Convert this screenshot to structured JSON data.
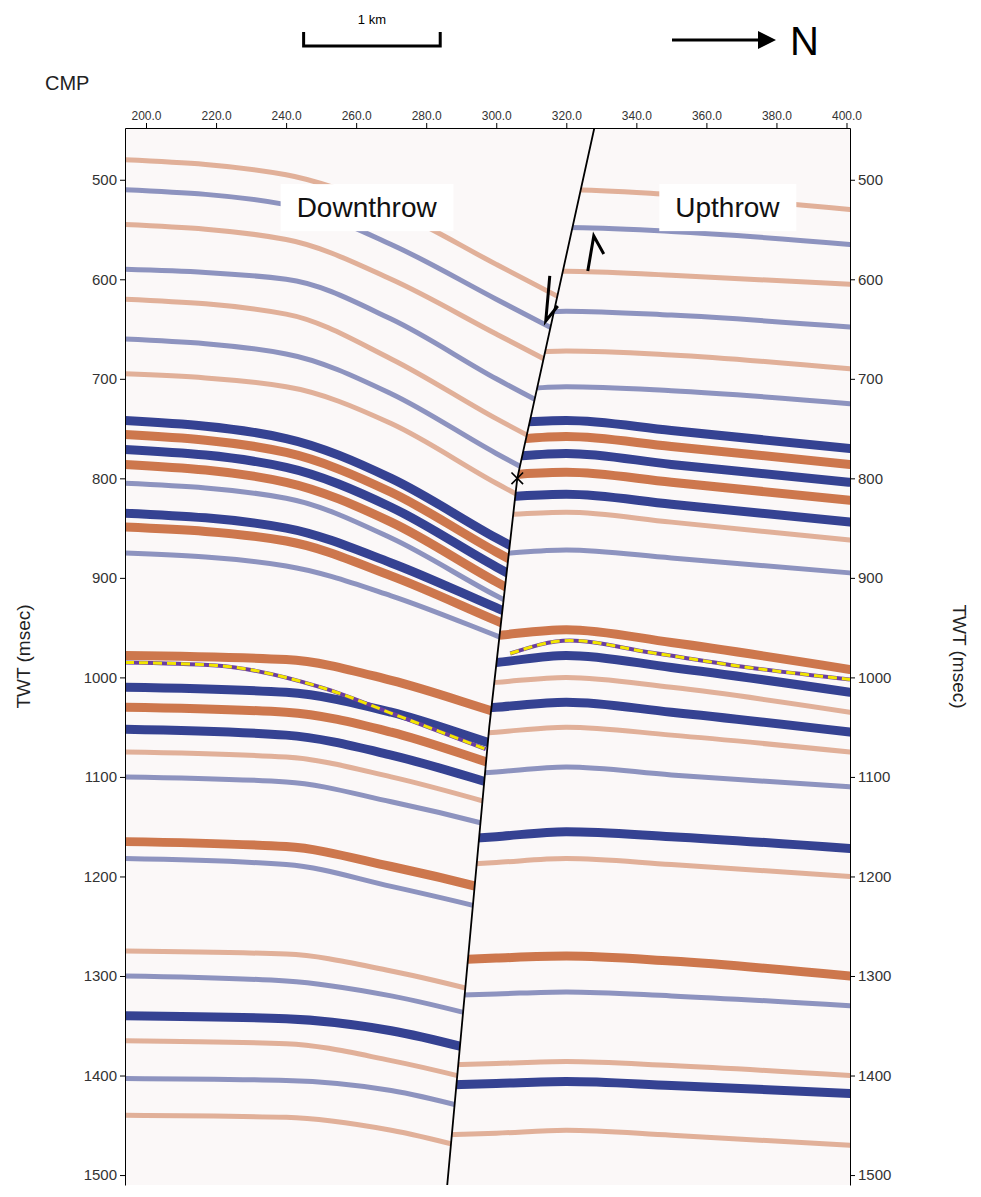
{
  "chart_data": {
    "type": "seismic_section",
    "x_label": "CMP",
    "y_label": "TWT (msec)",
    "y2_label": "TWT (msec)",
    "xlim": [
      194,
      401
    ],
    "xticks": [
      {
        "value": 200,
        "label": "200.0"
      },
      {
        "value": 220,
        "label": "220.0"
      },
      {
        "value": 240,
        "label": "240.0"
      },
      {
        "value": 260,
        "label": "260.0"
      },
      {
        "value": 280,
        "label": "280.0"
      },
      {
        "value": 300,
        "label": "300.0"
      },
      {
        "value": 320,
        "label": "320.0"
      },
      {
        "value": 340,
        "label": "340.0"
      },
      {
        "value": 360,
        "label": "360.0"
      },
      {
        "value": 380,
        "label": "380.0"
      },
      {
        "value": 400,
        "label": "400.0"
      }
    ],
    "ylim": [
      448,
      1510
    ],
    "yticks": [
      500,
      600,
      700,
      800,
      900,
      1000,
      1100,
      1200,
      1300,
      1400,
      1500
    ],
    "y2lim": [
      448,
      1510
    ],
    "y2ticks": [
      500,
      600,
      700,
      800,
      900,
      1000,
      1100,
      1200,
      1300,
      1400,
      1500
    ],
    "annotations": [
      {
        "text": "Downthrow",
        "x": 263,
        "y": 528
      },
      {
        "text": "Upthrow",
        "x": 366,
        "y": 528
      }
    ],
    "scale_bar": {
      "label": "1 km",
      "x": [
        245,
        284
      ]
    },
    "north_arrow": {
      "label": "N"
    },
    "fault": {
      "color": "#000000",
      "x": [
        328,
        306,
        298,
        286
      ],
      "y": [
        448,
        800,
        1050,
        1510
      ]
    },
    "fault_marker": {
      "x": 306,
      "y": 800,
      "marker": "x"
    },
    "horizons": [
      {
        "color": "#f2e600",
        "line_style": "dashed",
        "x": [
          194,
          220,
          250,
          273,
          297
        ],
        "y": [
          985,
          988,
          1010,
          1040,
          1072
        ]
      },
      {
        "color": "#f2e600",
        "line_style": "dashed",
        "x": [
          304,
          321,
          344,
          372,
          401
        ],
        "y": [
          976,
          963,
          975,
          990,
          1002
        ]
      }
    ],
    "downthrow_reflectors": [
      {
        "color": "#c8683a",
        "line_style": "weak",
        "x": [
          194,
          240,
          270,
          300,
          330
        ],
        "y": [
          480,
          495,
          530,
          585,
          640
        ]
      },
      {
        "color": "#1f2d86",
        "line_style": "weak",
        "x": [
          194,
          240,
          270,
          300,
          330
        ],
        "y": [
          510,
          525,
          565,
          620,
          675
        ]
      },
      {
        "color": "#c8683a",
        "line_style": "weak",
        "x": [
          194,
          240,
          270,
          300,
          330
        ],
        "y": [
          545,
          560,
          600,
          655,
          710
        ]
      },
      {
        "color": "#1f2d86",
        "line_style": "weak",
        "x": [
          194,
          240,
          270,
          300,
          330
        ],
        "y": [
          590,
          600,
          640,
          700,
          755
        ]
      },
      {
        "color": "#c8683a",
        "line_style": "weak",
        "x": [
          194,
          240,
          270,
          300,
          330
        ],
        "y": [
          620,
          635,
          680,
          740,
          795
        ]
      },
      {
        "color": "#1f2d86",
        "line_style": "weak",
        "x": [
          194,
          240,
          270,
          300,
          330
        ],
        "y": [
          660,
          675,
          715,
          775,
          830
        ]
      },
      {
        "color": "#c8683a",
        "line_style": "weak",
        "x": [
          194,
          240,
          270,
          300,
          330
        ],
        "y": [
          695,
          708,
          745,
          805,
          860
        ]
      },
      {
        "color": "#1f2d86",
        "line_style": "strong",
        "x": [
          194,
          240,
          270,
          300,
          330
        ],
        "y": [
          742,
          760,
          800,
          860,
          915
        ]
      },
      {
        "color": "#c8683a",
        "line_style": "strong",
        "x": [
          194,
          240,
          270,
          300,
          330
        ],
        "y": [
          756,
          774,
          814,
          874,
          929
        ]
      },
      {
        "color": "#1f2d86",
        "line_style": "strong",
        "x": [
          194,
          240,
          270,
          300,
          330
        ],
        "y": [
          771,
          789,
          829,
          889,
          944
        ]
      },
      {
        "color": "#c8683a",
        "line_style": "strong",
        "x": [
          194,
          240,
          270,
          300,
          330
        ],
        "y": [
          786,
          804,
          844,
          904,
          959
        ]
      },
      {
        "color": "#1f2d86",
        "line_style": "weak",
        "x": [
          194,
          240,
          270,
          300,
          330
        ],
        "y": [
          805,
          820,
          860,
          918,
          970
        ]
      },
      {
        "color": "#1f2d86",
        "line_style": "strong",
        "x": [
          194,
          240,
          270,
          300,
          330
        ],
        "y": [
          835,
          850,
          885,
          930,
          975
        ]
      },
      {
        "color": "#c8683a",
        "line_style": "strong",
        "x": [
          194,
          240,
          270,
          300,
          330
        ],
        "y": [
          849,
          863,
          898,
          943,
          988
        ]
      },
      {
        "color": "#1f2d86",
        "line_style": "weak",
        "x": [
          194,
          240,
          270,
          300,
          330
        ],
        "y": [
          875,
          888,
          918,
          958,
          1000
        ]
      },
      {
        "color": "#c8683a",
        "line_style": "strong",
        "x": [
          194,
          240,
          270,
          300,
          330
        ],
        "y": [
          978,
          982,
          1003,
          1035,
          1067
        ]
      },
      {
        "color": "#1f2d86",
        "line_style": "strong",
        "x": [
          194,
          240,
          270,
          300,
          330
        ],
        "y": [
          1010,
          1015,
          1035,
          1068,
          1100
        ]
      },
      {
        "color": "#c8683a",
        "line_style": "strong",
        "x": [
          194,
          240,
          270,
          300,
          330
        ],
        "y": [
          1030,
          1035,
          1055,
          1088,
          1120
        ]
      },
      {
        "color": "#1f2d86",
        "line_style": "strong",
        "x": [
          194,
          240,
          270,
          300,
          330
        ],
        "y": [
          1052,
          1058,
          1078,
          1108,
          1140
        ]
      },
      {
        "color": "#c8683a",
        "line_style": "weak",
        "x": [
          194,
          240,
          270,
          300,
          330
        ],
        "y": [
          1075,
          1080,
          1100,
          1128,
          1160
        ]
      },
      {
        "color": "#1f2d86",
        "line_style": "weak",
        "x": [
          194,
          240,
          270,
          300,
          330
        ],
        "y": [
          1100,
          1105,
          1125,
          1150,
          1180
        ]
      },
      {
        "color": "#c8683a",
        "line_style": "strong",
        "x": [
          194,
          240,
          270,
          300,
          330
        ],
        "y": [
          1165,
          1170,
          1190,
          1215,
          1245
        ]
      },
      {
        "color": "#1f2d86",
        "line_style": "weak",
        "x": [
          194,
          240,
          270,
          300,
          330
        ],
        "y": [
          1182,
          1188,
          1210,
          1235,
          1265
        ]
      },
      {
        "color": "#c8683a",
        "line_style": "weak",
        "x": [
          194,
          240,
          270,
          300,
          330
        ],
        "y": [
          1275,
          1278,
          1295,
          1320,
          1350
        ]
      },
      {
        "color": "#1f2d86",
        "line_style": "weak",
        "x": [
          194,
          240,
          270,
          300,
          330
        ],
        "y": [
          1300,
          1305,
          1320,
          1345,
          1375
        ]
      },
      {
        "color": "#1f2d86",
        "line_style": "strong",
        "x": [
          194,
          240,
          270,
          300,
          330
        ],
        "y": [
          1340,
          1343,
          1355,
          1380,
          1410
        ]
      },
      {
        "color": "#c8683a",
        "line_style": "weak",
        "x": [
          194,
          240,
          270,
          300,
          330
        ],
        "y": [
          1365,
          1368,
          1385,
          1410,
          1440
        ]
      },
      {
        "color": "#1f2d86",
        "line_style": "weak",
        "x": [
          194,
          240,
          270,
          300,
          330
        ],
        "y": [
          1403,
          1405,
          1415,
          1440,
          1470
        ]
      },
      {
        "color": "#c8683a",
        "line_style": "weak",
        "x": [
          194,
          240,
          270,
          300,
          330
        ],
        "y": [
          1440,
          1442,
          1455,
          1480,
          1505
        ]
      }
    ],
    "upthrow_reflectors": [
      {
        "color": "#c8683a",
        "line_style": "weak",
        "x": [
          280,
          300,
          320,
          350,
          401
        ],
        "y": [
          520,
          515,
          510,
          515,
          530
        ]
      },
      {
        "color": "#1f2d86",
        "line_style": "weak",
        "x": [
          280,
          300,
          320,
          350,
          401
        ],
        "y": [
          555,
          552,
          548,
          552,
          565
        ]
      },
      {
        "color": "#c8683a",
        "line_style": "weak",
        "x": [
          280,
          300,
          320,
          350,
          401
        ],
        "y": [
          600,
          596,
          592,
          596,
          605
        ]
      },
      {
        "color": "#1f2d86",
        "line_style": "weak",
        "x": [
          280,
          300,
          320,
          350,
          401
        ],
        "y": [
          640,
          636,
          632,
          636,
          648
        ]
      },
      {
        "color": "#c8683a",
        "line_style": "weak",
        "x": [
          280,
          300,
          320,
          350,
          401
        ],
        "y": [
          680,
          676,
          672,
          676,
          690
        ]
      },
      {
        "color": "#1f2d86",
        "line_style": "weak",
        "x": [
          280,
          300,
          320,
          350,
          401
        ],
        "y": [
          715,
          712,
          708,
          712,
          725
        ]
      },
      {
        "color": "#1f2d86",
        "line_style": "strong",
        "x": [
          280,
          300,
          320,
          350,
          401
        ],
        "y": [
          748,
          745,
          742,
          752,
          770
        ]
      },
      {
        "color": "#c8683a",
        "line_style": "strong",
        "x": [
          280,
          300,
          320,
          350,
          401
        ],
        "y": [
          765,
          762,
          758,
          768,
          786
        ]
      },
      {
        "color": "#1f2d86",
        "line_style": "strong",
        "x": [
          280,
          300,
          320,
          350,
          401
        ],
        "y": [
          782,
          779,
          775,
          786,
          804
        ]
      },
      {
        "color": "#c8683a",
        "line_style": "strong",
        "x": [
          280,
          300,
          320,
          350,
          401
        ],
        "y": [
          800,
          797,
          794,
          804,
          822
        ]
      },
      {
        "color": "#1f2d86",
        "line_style": "strong",
        "x": [
          280,
          300,
          320,
          350,
          401
        ],
        "y": [
          822,
          819,
          816,
          826,
          844
        ]
      },
      {
        "color": "#c8683a",
        "line_style": "weak",
        "x": [
          280,
          300,
          320,
          350,
          401
        ],
        "y": [
          840,
          837,
          834,
          844,
          862
        ]
      },
      {
        "color": "#1f2d86",
        "line_style": "weak",
        "x": [
          280,
          300,
          320,
          350,
          401
        ],
        "y": [
          880,
          876,
          872,
          880,
          895
        ]
      },
      {
        "color": "#c8683a",
        "line_style": "strong",
        "x": [
          280,
          300,
          320,
          350,
          401
        ],
        "y": [
          965,
          958,
          952,
          965,
          992
        ]
      },
      {
        "color": "#1f2d86",
        "line_style": "strong",
        "x": [
          280,
          300,
          320,
          350,
          401
        ],
        "y": [
          990,
          985,
          978,
          990,
          1015
        ]
      },
      {
        "color": "#c8683a",
        "line_style": "weak",
        "x": [
          280,
          300,
          320,
          350,
          401
        ],
        "y": [
          1010,
          1005,
          1000,
          1010,
          1035
        ]
      },
      {
        "color": "#1f2d86",
        "line_style": "strong",
        "x": [
          280,
          300,
          320,
          350,
          401
        ],
        "y": [
          1035,
          1030,
          1025,
          1035,
          1055
        ]
      },
      {
        "color": "#c8683a",
        "line_style": "weak",
        "x": [
          280,
          300,
          320,
          350,
          401
        ],
        "y": [
          1060,
          1055,
          1050,
          1058,
          1075
        ]
      },
      {
        "color": "#1f2d86",
        "line_style": "weak",
        "x": [
          280,
          300,
          320,
          350,
          401
        ],
        "y": [
          1100,
          1095,
          1090,
          1098,
          1110
        ]
      },
      {
        "color": "#1f2d86",
        "line_style": "strong",
        "x": [
          280,
          300,
          320,
          350,
          401
        ],
        "y": [
          1165,
          1160,
          1155,
          1160,
          1172
        ]
      },
      {
        "color": "#c8683a",
        "line_style": "weak",
        "x": [
          280,
          300,
          320,
          350,
          401
        ],
        "y": [
          1190,
          1186,
          1182,
          1188,
          1200
        ]
      },
      {
        "color": "#c8683a",
        "line_style": "strong",
        "x": [
          280,
          300,
          320,
          350,
          401
        ],
        "y": [
          1285,
          1282,
          1280,
          1285,
          1300
        ]
      },
      {
        "color": "#1f2d86",
        "line_style": "weak",
        "x": [
          280,
          300,
          320,
          350,
          401
        ],
        "y": [
          1320,
          1318,
          1316,
          1320,
          1330
        ]
      },
      {
        "color": "#c8683a",
        "line_style": "weak",
        "x": [
          280,
          300,
          320,
          350,
          401
        ],
        "y": [
          1390,
          1388,
          1386,
          1390,
          1400
        ]
      },
      {
        "color": "#1f2d86",
        "line_style": "strong",
        "x": [
          280,
          300,
          320,
          350,
          401
        ],
        "y": [
          1410,
          1408,
          1406,
          1410,
          1418
        ]
      },
      {
        "color": "#c8683a",
        "line_style": "weak",
        "x": [
          280,
          300,
          320,
          350,
          401
        ],
        "y": [
          1460,
          1458,
          1455,
          1460,
          1470
        ]
      }
    ]
  }
}
